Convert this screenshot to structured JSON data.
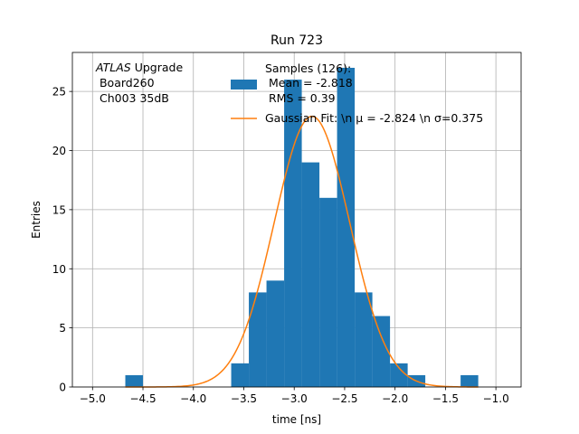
{
  "chart_data": {
    "type": "bar",
    "title": "Run 723",
    "xlabel": "time [ns]",
    "ylabel": "Entries",
    "xlim": [
      -5.2,
      -0.75
    ],
    "ylim": [
      0,
      28.3
    ],
    "x_ticks": [
      -5.0,
      -4.5,
      -4.0,
      -3.5,
      -3.0,
      -2.5,
      -2.0,
      -1.5,
      -1.0
    ],
    "x_tick_labels": [
      "−5.0",
      "−4.5",
      "−4.0",
      "−3.5",
      "−3.0",
      "−2.5",
      "−2.0",
      "−1.5",
      "−1.0"
    ],
    "y_ticks": [
      0,
      5,
      10,
      15,
      20,
      25
    ],
    "y_tick_labels": [
      "0",
      "5",
      "10",
      "15",
      "20",
      "25"
    ],
    "grid": true,
    "histogram": {
      "bin_edges": [
        -4.675,
        -4.5,
        -4.325,
        -4.15,
        -3.975,
        -3.8,
        -3.625,
        -3.45,
        -3.275,
        -3.1,
        -2.925,
        -2.75,
        -2.575,
        -2.4,
        -2.225,
        -2.05,
        -1.875,
        -1.7,
        -1.525,
        -1.35,
        -1.175
      ],
      "counts": [
        1,
        0,
        0,
        0,
        0,
        0,
        2,
        8,
        9,
        26,
        19,
        16,
        27,
        8,
        6,
        2,
        1,
        0,
        0,
        1
      ],
      "color": "#1f77b4"
    },
    "gaussian_fit": {
      "mu": -2.824,
      "sigma": 0.375,
      "amplitude": 22.9,
      "x_range": [
        -4.675,
        -1.175
      ],
      "color": "#ff7f0e"
    },
    "legend": {
      "placement": "top-center",
      "samples_lines": [
        "Samples (126):",
        " Mean = -2.818",
        " RMS = 0.39"
      ],
      "fit_label": "Gaussian Fit: \\n μ = -2.824 \\n σ=0.375"
    },
    "annotation": {
      "italic": "ATLAS",
      "rest": " Upgrade",
      "lines": [
        " Board260",
        " Ch003 35dB"
      ]
    }
  }
}
